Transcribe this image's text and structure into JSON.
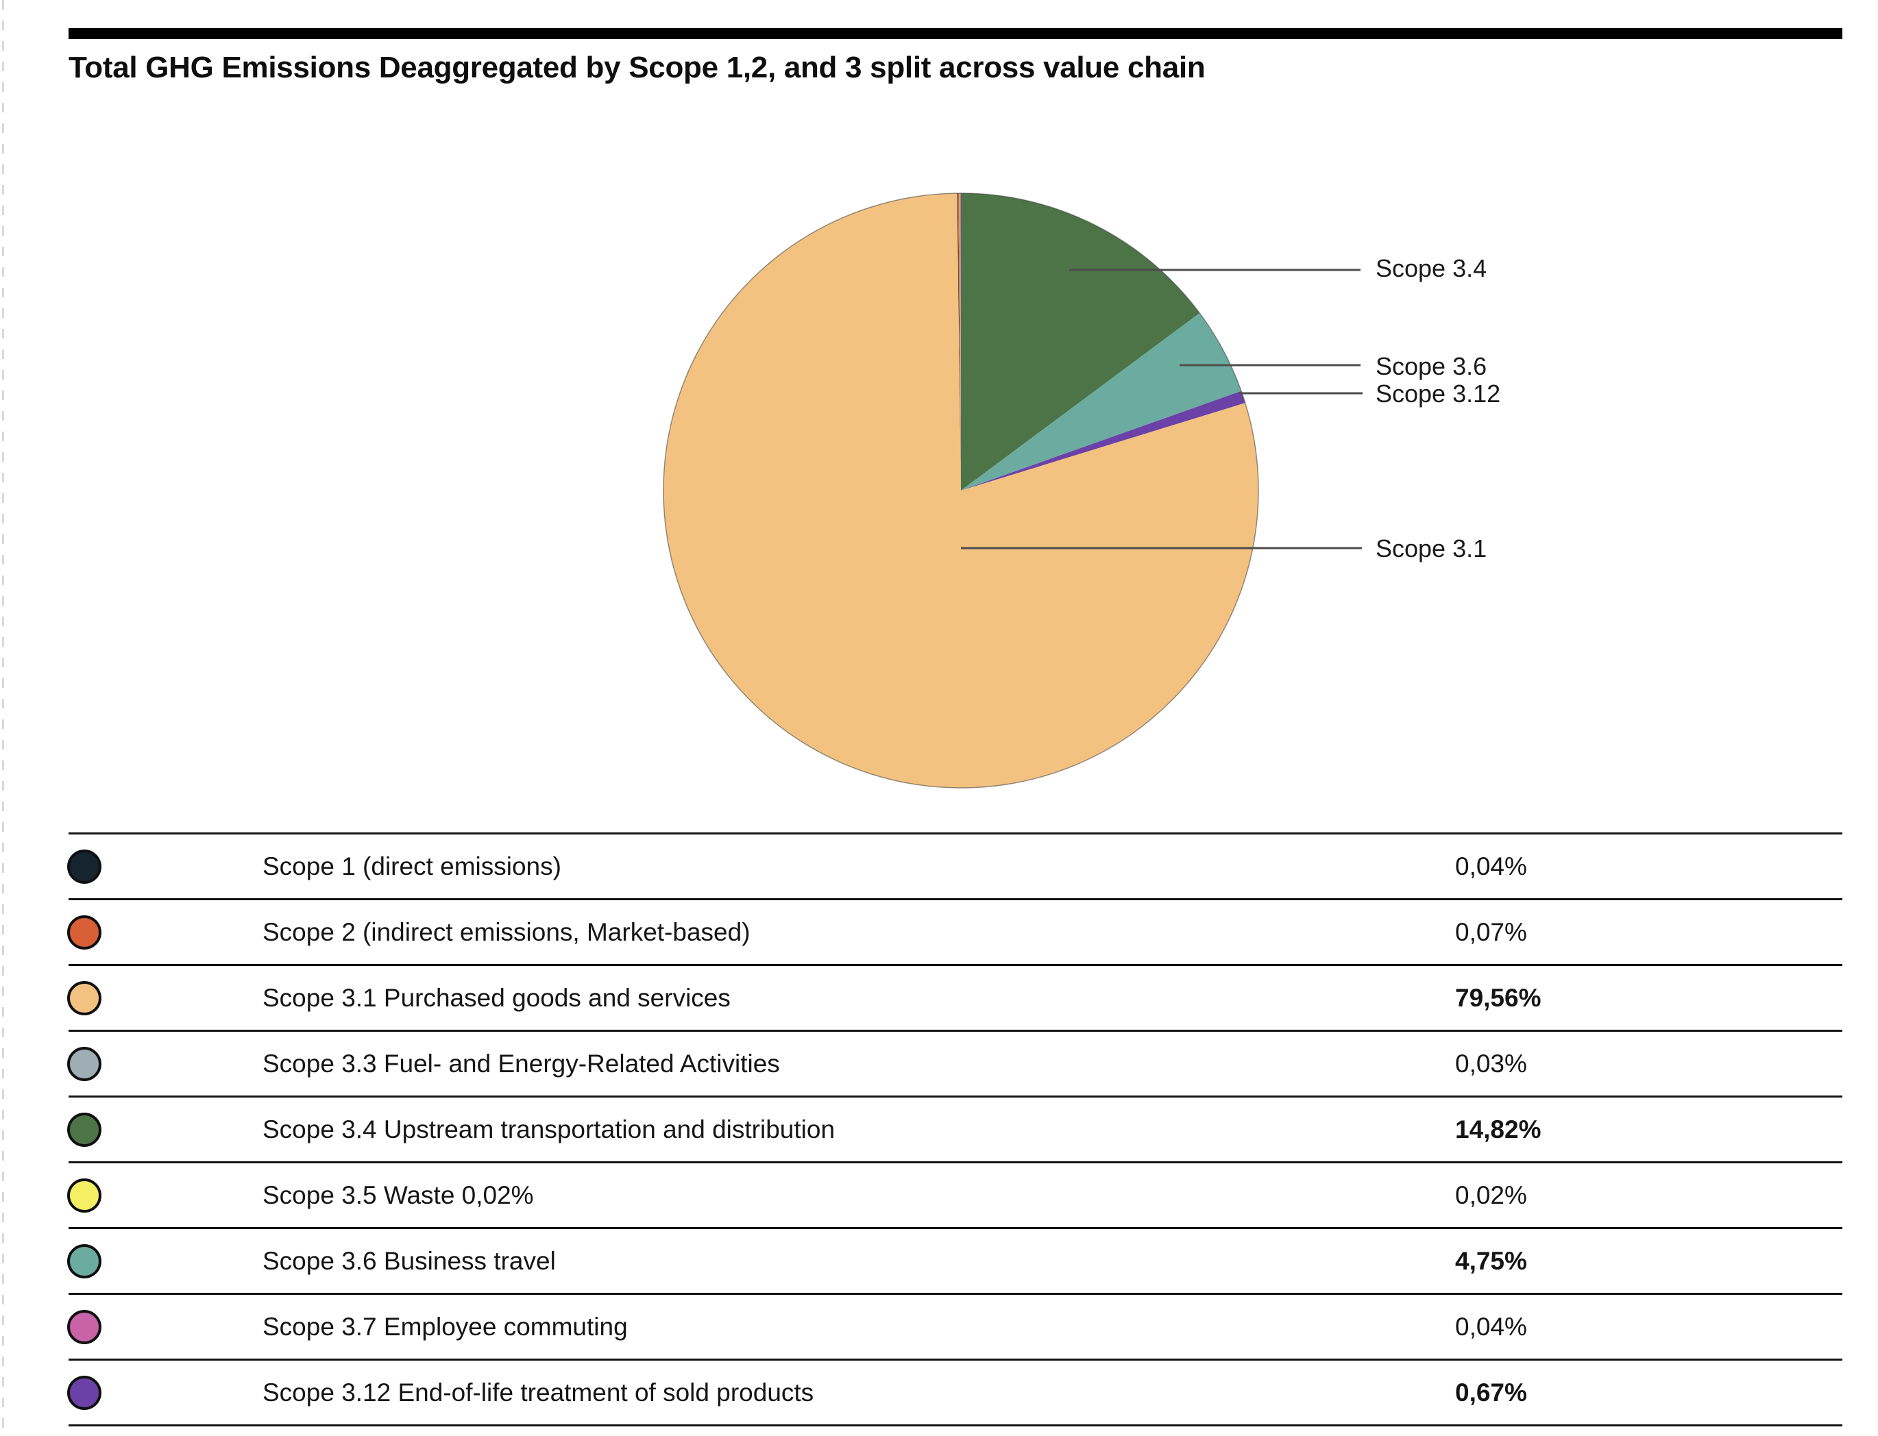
{
  "header": {
    "title": "Total GHG Emissions Deaggregated by Scope 1,2, and 3 split across value chain"
  },
  "chart_data": {
    "type": "pie",
    "title": "Total GHG Emissions Deaggregated by Scope 1,2, and 3 split across value chain",
    "value_unit": "%",
    "value_format": "decimal-comma",
    "slices": [
      {
        "short": "Scope 1",
        "name": "Scope 1 (direct emissions)",
        "value": 0.04,
        "display": "0,04%",
        "color": "#16242f",
        "bold": false
      },
      {
        "short": "Scope 2",
        "name": "Scope 2 (indirect emissions, Market-based)",
        "value": 0.07,
        "display": "0,07%",
        "color": "#d85e35",
        "bold": false
      },
      {
        "short": "Scope 3.1",
        "name": "Scope 3.1 Purchased goods and services",
        "value": 79.56,
        "display": "79,56%",
        "color": "#f3c281",
        "bold": true
      },
      {
        "short": "Scope 3.3",
        "name": "Scope 3.3 Fuel- and Energy-Related Activities",
        "value": 0.03,
        "display": "0,03%",
        "color": "#9faeb5",
        "bold": false
      },
      {
        "short": "Scope 3.4",
        "name": "Scope 3.4 Upstream transportation and distribution",
        "value": 14.82,
        "display": "14,82%",
        "color": "#4c7446",
        "bold": true
      },
      {
        "short": "Scope 3.5",
        "name": "Scope 3.5 Waste 0,02%",
        "value": 0.02,
        "display": "0,02%",
        "color": "#f5f063",
        "bold": false
      },
      {
        "short": "Scope 3.6",
        "name": "Scope 3.6 Business travel",
        "value": 4.75,
        "display": "4,75%",
        "color": "#6caba0",
        "bold": true
      },
      {
        "short": "Scope 3.7",
        "name": "Scope 3.7 Employee commuting",
        "value": 0.04,
        "display": "0,04%",
        "color": "#c763a6",
        "bold": false
      },
      {
        "short": "Scope 3.12",
        "name": "Scope 3.12 End-of-life treatment of sold products",
        "value": 0.67,
        "display": "0,67%",
        "color": "#6b41a8",
        "bold": true
      }
    ],
    "pie_render_order": [
      "Scope 3.4",
      "Scope 3.6",
      "Scope 3.12",
      "Scope 3.1",
      "Scope 1",
      "Scope 2",
      "Scope 3.3",
      "Scope 3.5",
      "Scope 3.7"
    ],
    "pie_start_angle_deg": 0,
    "pie_direction": "clockwise",
    "callouts": [
      {
        "label": "Scope 3.4"
      },
      {
        "label": "Scope 3.6"
      },
      {
        "label": "Scope 3.12"
      },
      {
        "label": "Scope 3.1"
      }
    ],
    "legend_position": "bottom-table"
  }
}
